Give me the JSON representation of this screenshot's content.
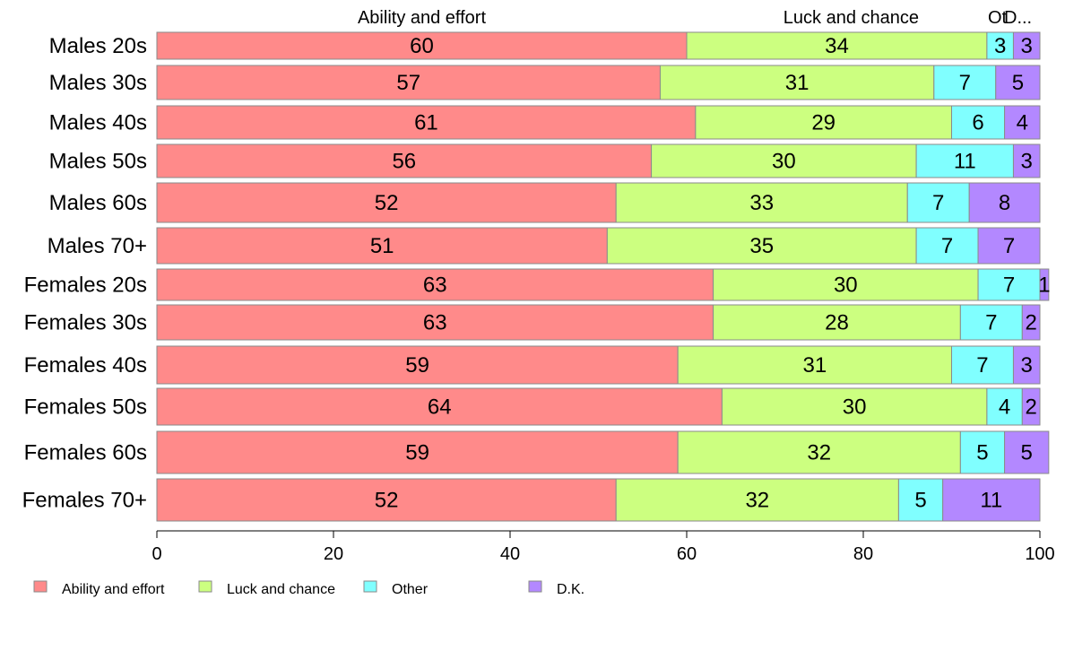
{
  "chart_data": {
    "type": "bar",
    "orientation": "horizontal",
    "stacked": true,
    "title": "",
    "xlabel": "",
    "ylabel": "",
    "xlim": [
      0,
      100
    ],
    "x_ticks": [
      0,
      20,
      40,
      60,
      80,
      100
    ],
    "grid": false,
    "legend_position": "bottom-left",
    "top_labels": [
      "Ability and effort",
      "Luck and chance",
      "Ot",
      "D..."
    ],
    "categories": [
      "Males 20s",
      "Males 30s",
      "Males 40s",
      "Males 50s",
      "Males 60s",
      "Males 70+",
      "Females 20s",
      "Females 30s",
      "Females 40s",
      "Females 50s",
      "Females 60s",
      "Females 70+"
    ],
    "series": [
      {
        "name": "Ability and effort",
        "color": "#ff8a8a",
        "values": [
          60,
          57,
          61,
          56,
          52,
          51,
          63,
          63,
          59,
          64,
          59,
          52
        ]
      },
      {
        "name": "Luck and chance",
        "color": "#ccff80",
        "values": [
          34,
          31,
          29,
          30,
          33,
          35,
          30,
          28,
          31,
          30,
          32,
          32
        ]
      },
      {
        "name": "Other",
        "color": "#80ffff",
        "values": [
          3,
          7,
          6,
          11,
          7,
          7,
          7,
          7,
          7,
          4,
          5,
          5
        ]
      },
      {
        "name": "D.K.",
        "color": "#b388ff",
        "values": [
          3,
          5,
          4,
          3,
          8,
          7,
          1,
          2,
          3,
          2,
          5,
          11
        ]
      }
    ]
  }
}
